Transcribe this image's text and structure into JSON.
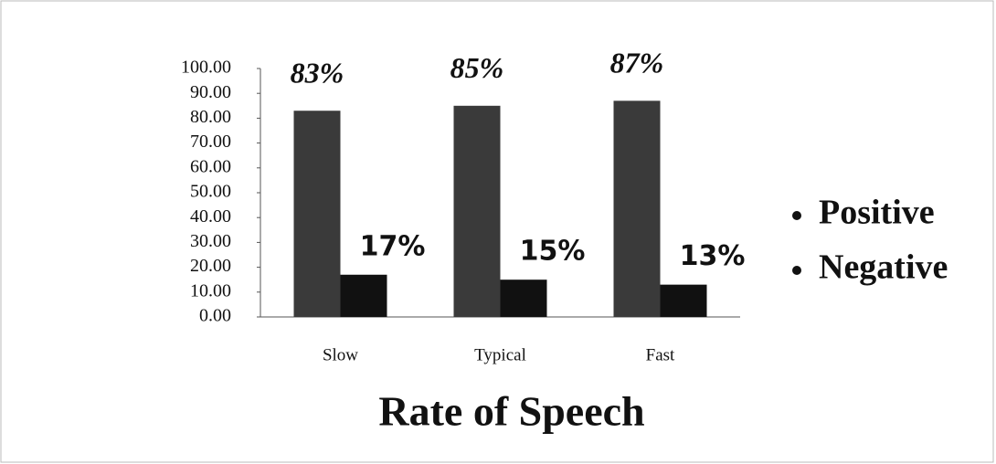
{
  "chart_data": {
    "type": "bar",
    "x_label": "Rate of Speech",
    "categories": [
      "Slow",
      "Typical",
      "Fast"
    ],
    "series": [
      {
        "name": "Positive",
        "color": "#3a3a3a",
        "values": [
          83,
          85,
          87
        ],
        "value_labels": [
          "83%",
          "85%",
          "87%"
        ]
      },
      {
        "name": "Negative",
        "color": "#111111",
        "values": [
          17,
          15,
          13
        ],
        "value_labels": [
          "17%",
          "15%",
          "13%"
        ]
      }
    ],
    "ylim": [
      0,
      100
    ],
    "yticks": [
      {
        "value": 0,
        "label": "0.00"
      },
      {
        "value": 10,
        "label": "10.00"
      },
      {
        "value": 20,
        "label": "20.00"
      },
      {
        "value": 30,
        "label": "30.00"
      },
      {
        "value": 40,
        "label": "40.00"
      },
      {
        "value": 50,
        "label": "50.00"
      },
      {
        "value": 60,
        "label": "60.00"
      },
      {
        "value": 70,
        "label": "70.00"
      },
      {
        "value": 80,
        "label": "80.00"
      },
      {
        "value": 90,
        "label": "90.00"
      },
      {
        "value": 100,
        "label": "100.00"
      }
    ],
    "legend": "right"
  }
}
